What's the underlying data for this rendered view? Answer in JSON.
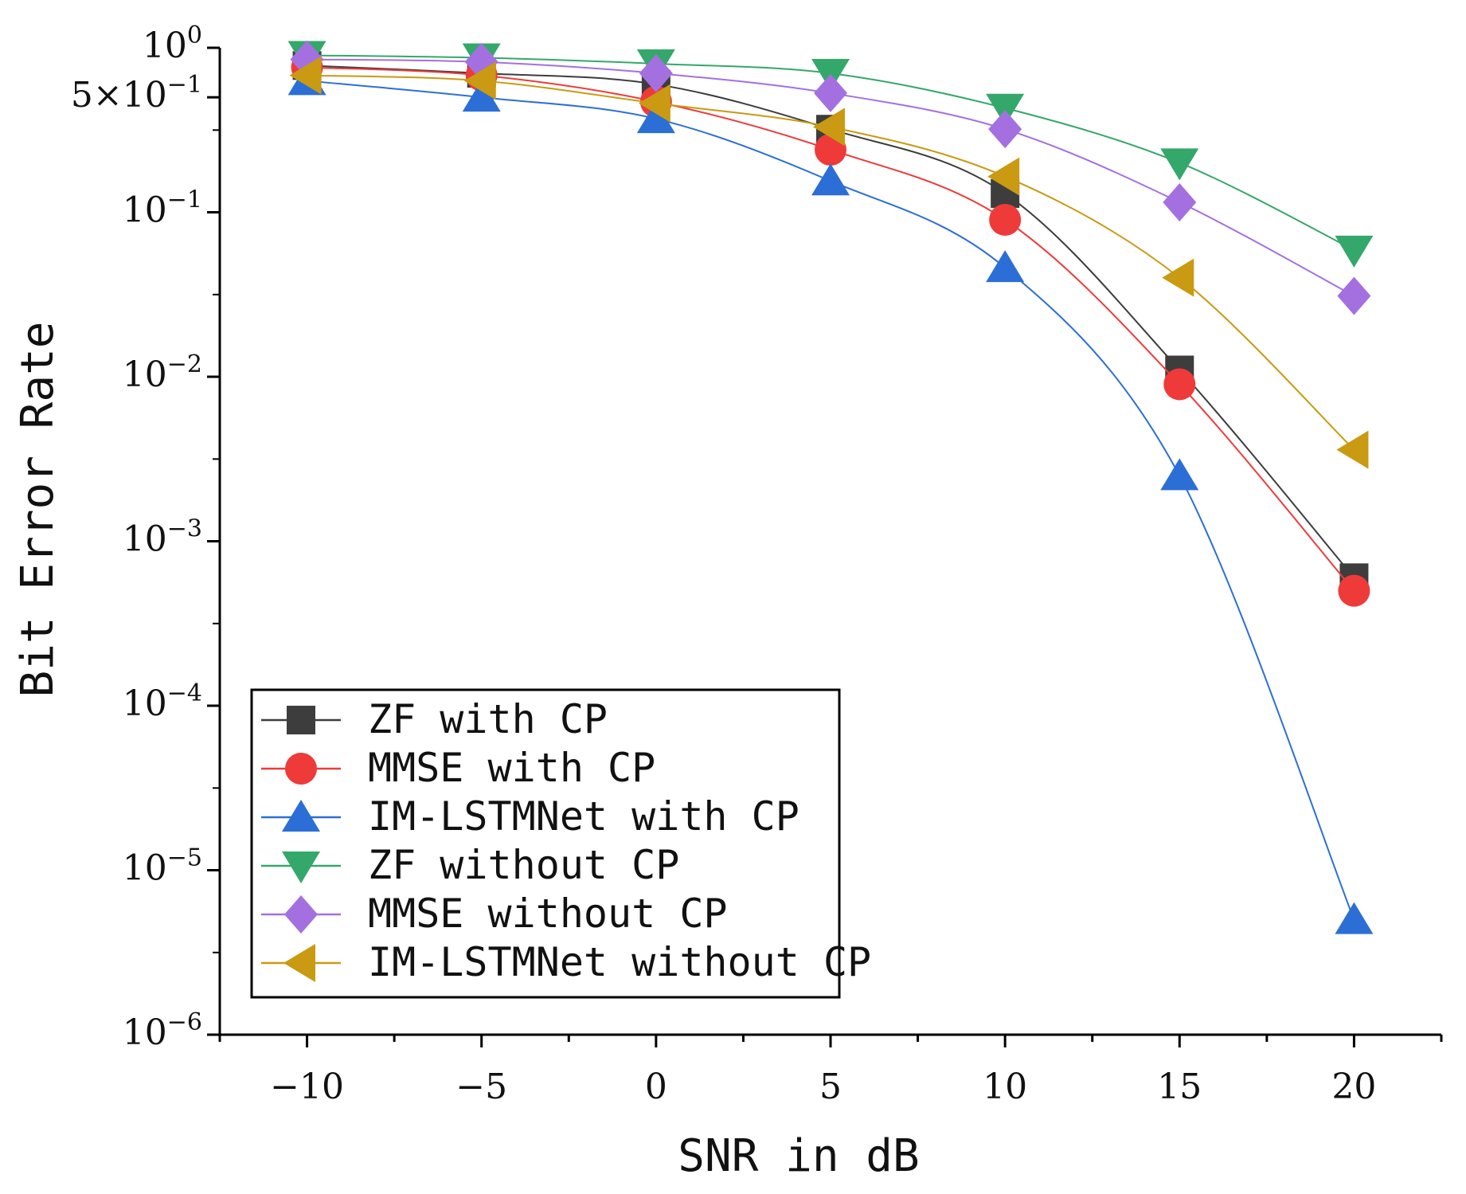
{
  "chart_data": {
    "type": "line",
    "xlabel": "SNR in dB",
    "ylabel": "Bit Error Rate",
    "x": [
      -10,
      -5,
      0,
      5,
      10,
      15,
      20
    ],
    "xlim": [
      -12.5,
      22.5
    ],
    "ylim": [
      1e-06,
      1
    ],
    "yscale": "log",
    "x_ticks": [
      "-10",
      "-5",
      "0",
      "5",
      "10",
      "15",
      "20"
    ],
    "y_ticks": [
      {
        "base": "10",
        "exp": "0",
        "value": 1
      },
      {
        "base": "5×10",
        "exp": "-1",
        "value": 0.5
      },
      {
        "base": "10",
        "exp": "-1",
        "value": 0.1
      },
      {
        "base": "10",
        "exp": "-2",
        "value": 0.01
      },
      {
        "base": "10",
        "exp": "-3",
        "value": 0.001
      },
      {
        "base": "10",
        "exp": "-4",
        "value": 0.0001
      },
      {
        "base": "10",
        "exp": "-5",
        "value": 1e-05
      },
      {
        "base": "10",
        "exp": "-6",
        "value": 1e-06
      }
    ],
    "legend_position": "bottom-left",
    "series": [
      {
        "name": "ZF with CP",
        "color": "#3d3d3d",
        "marker": "square",
        "values": [
          0.78,
          0.7,
          0.6,
          0.32,
          0.13,
          0.011,
          0.0006
        ]
      },
      {
        "name": "MMSE with CP",
        "color": "#ef3a3a",
        "marker": "circle",
        "values": [
          0.76,
          0.68,
          0.47,
          0.24,
          0.09,
          0.009,
          0.0005
        ]
      },
      {
        "name": "IM-LSTMNet with CP",
        "color": "#2b6fd6",
        "marker": "triangle-up",
        "values": [
          0.63,
          0.5,
          0.37,
          0.155,
          0.046,
          0.0025,
          5e-06
        ]
      },
      {
        "name": "ZF without CP",
        "color": "#34a86a",
        "marker": "triangle-down",
        "values": [
          0.9,
          0.87,
          0.8,
          0.7,
          0.43,
          0.2,
          0.059
        ]
      },
      {
        "name": "MMSE without CP",
        "color": "#a470e0",
        "marker": "diamond",
        "values": [
          0.85,
          0.82,
          0.7,
          0.53,
          0.32,
          0.115,
          0.031
        ]
      },
      {
        "name": "IM-LSTMNet without CP",
        "color": "#c99a12",
        "marker": "triangle-left",
        "values": [
          0.68,
          0.63,
          0.46,
          0.33,
          0.165,
          0.04,
          0.0036
        ]
      }
    ]
  }
}
